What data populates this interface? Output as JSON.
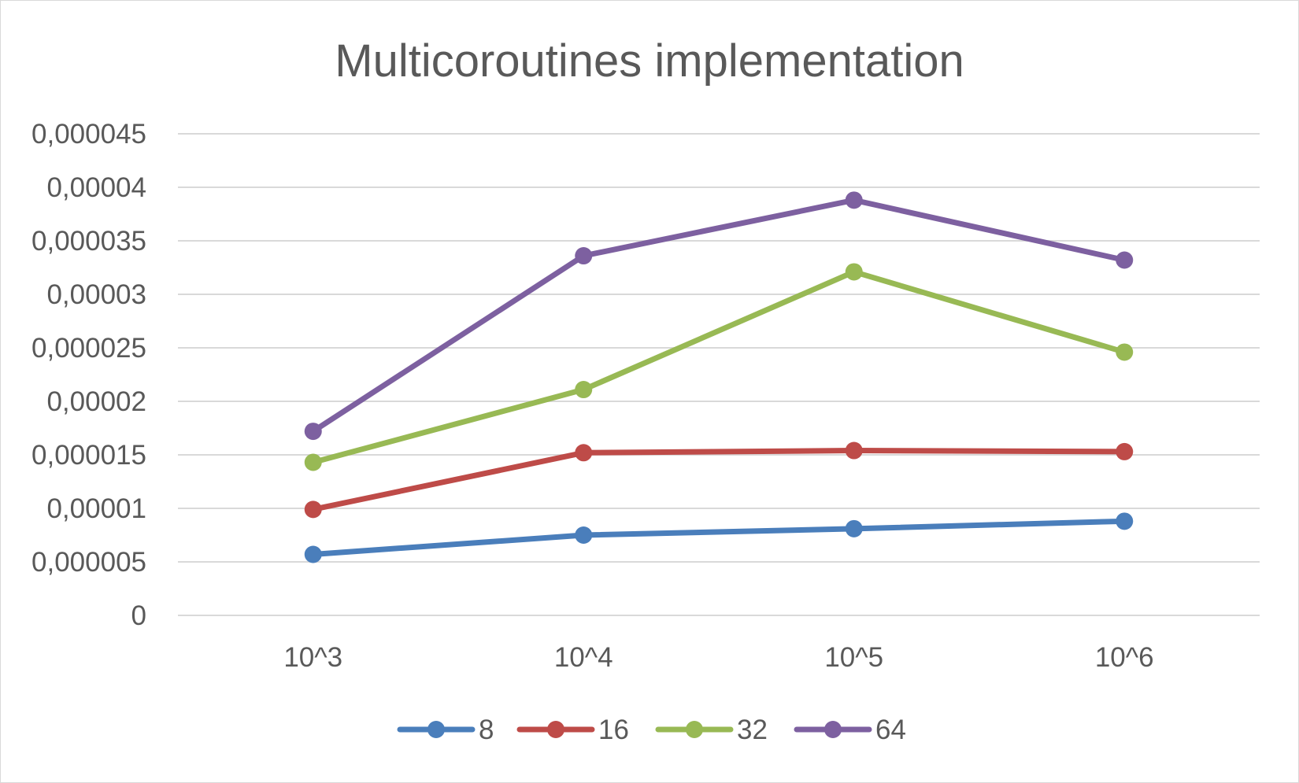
{
  "chart_data": {
    "type": "line",
    "title": "Multicoroutines implementation",
    "xlabel": "",
    "ylabel": "",
    "categories": [
      "10^3",
      "10^4",
      "10^5",
      "10^6"
    ],
    "y_ticks": [
      "0",
      "0,000005",
      "0,00001",
      "0,000015",
      "0,00002",
      "0,000025",
      "0,00003",
      "0,000035",
      "0,00004",
      "0,000045"
    ],
    "ylim": [
      0,
      4.5e-05
    ],
    "grid": true,
    "legend_position": "bottom",
    "series": [
      {
        "name": "8",
        "color": "#4a7ebb",
        "values": [
          5.7e-06,
          7.5e-06,
          8.1e-06,
          8.8e-06
        ]
      },
      {
        "name": "16",
        "color": "#be4b48",
        "values": [
          9.9e-06,
          1.52e-05,
          1.54e-05,
          1.53e-05
        ]
      },
      {
        "name": "32",
        "color": "#98b954",
        "values": [
          1.43e-05,
          2.11e-05,
          3.21e-05,
          2.46e-05
        ]
      },
      {
        "name": "64",
        "color": "#7d60a0",
        "values": [
          1.72e-05,
          3.36e-05,
          3.88e-05,
          3.32e-05
        ]
      }
    ]
  }
}
